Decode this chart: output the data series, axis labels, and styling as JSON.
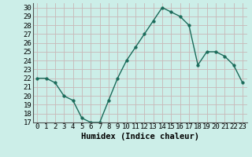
{
  "x": [
    0,
    1,
    2,
    3,
    4,
    5,
    6,
    7,
    8,
    9,
    10,
    11,
    12,
    13,
    14,
    15,
    16,
    17,
    18,
    19,
    20,
    21,
    22,
    23
  ],
  "y": [
    22,
    22,
    21.5,
    20,
    19.5,
    17.5,
    17,
    17,
    19.5,
    22,
    24,
    25.5,
    27,
    28.5,
    30,
    29.5,
    29,
    28,
    23.5,
    25,
    25,
    24.5,
    23.5,
    21.5
  ],
  "line_color": "#1a6b5a",
  "marker": "o",
  "markersize": 2.5,
  "linewidth": 1.0,
  "xlabel": "Humidex (Indice chaleur)",
  "ylim": [
    17,
    30.5
  ],
  "xlim": [
    -0.5,
    23.5
  ],
  "yticks": [
    17,
    18,
    19,
    20,
    21,
    22,
    23,
    24,
    25,
    26,
    27,
    28,
    29,
    30
  ],
  "xtick_labels": [
    "0",
    "1",
    "2",
    "3",
    "4",
    "5",
    "6",
    "7",
    "8",
    "9",
    "10",
    "11",
    "12",
    "13",
    "14",
    "15",
    "16",
    "17",
    "18",
    "19",
    "20",
    "21",
    "22",
    "23"
  ],
  "bg_color": "#cceee8",
  "grid_color": "#c8b8b8",
  "xlabel_fontsize": 7.5,
  "tick_fontsize": 6.5
}
